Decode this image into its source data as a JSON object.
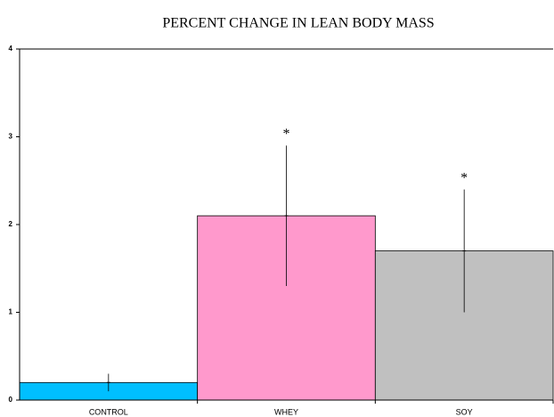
{
  "chart_data": {
    "type": "bar",
    "title": "PERCENT CHANGE IN LEAN BODY MASS",
    "categories": [
      "CONTROL",
      "WHEY",
      "SOY"
    ],
    "values": [
      0.2,
      2.1,
      1.7
    ],
    "errors": [
      0.1,
      0.8,
      0.7
    ],
    "colors": [
      "#00bfff",
      "#ff99cc",
      "#c0c0c0"
    ],
    "annotations": [
      {
        "text": "*",
        "category": "WHEY"
      },
      {
        "text": "*",
        "category": "SOY"
      }
    ],
    "ylim": [
      0,
      4
    ],
    "yticks": [
      0,
      1,
      2,
      3,
      4
    ],
    "grid": false
  }
}
